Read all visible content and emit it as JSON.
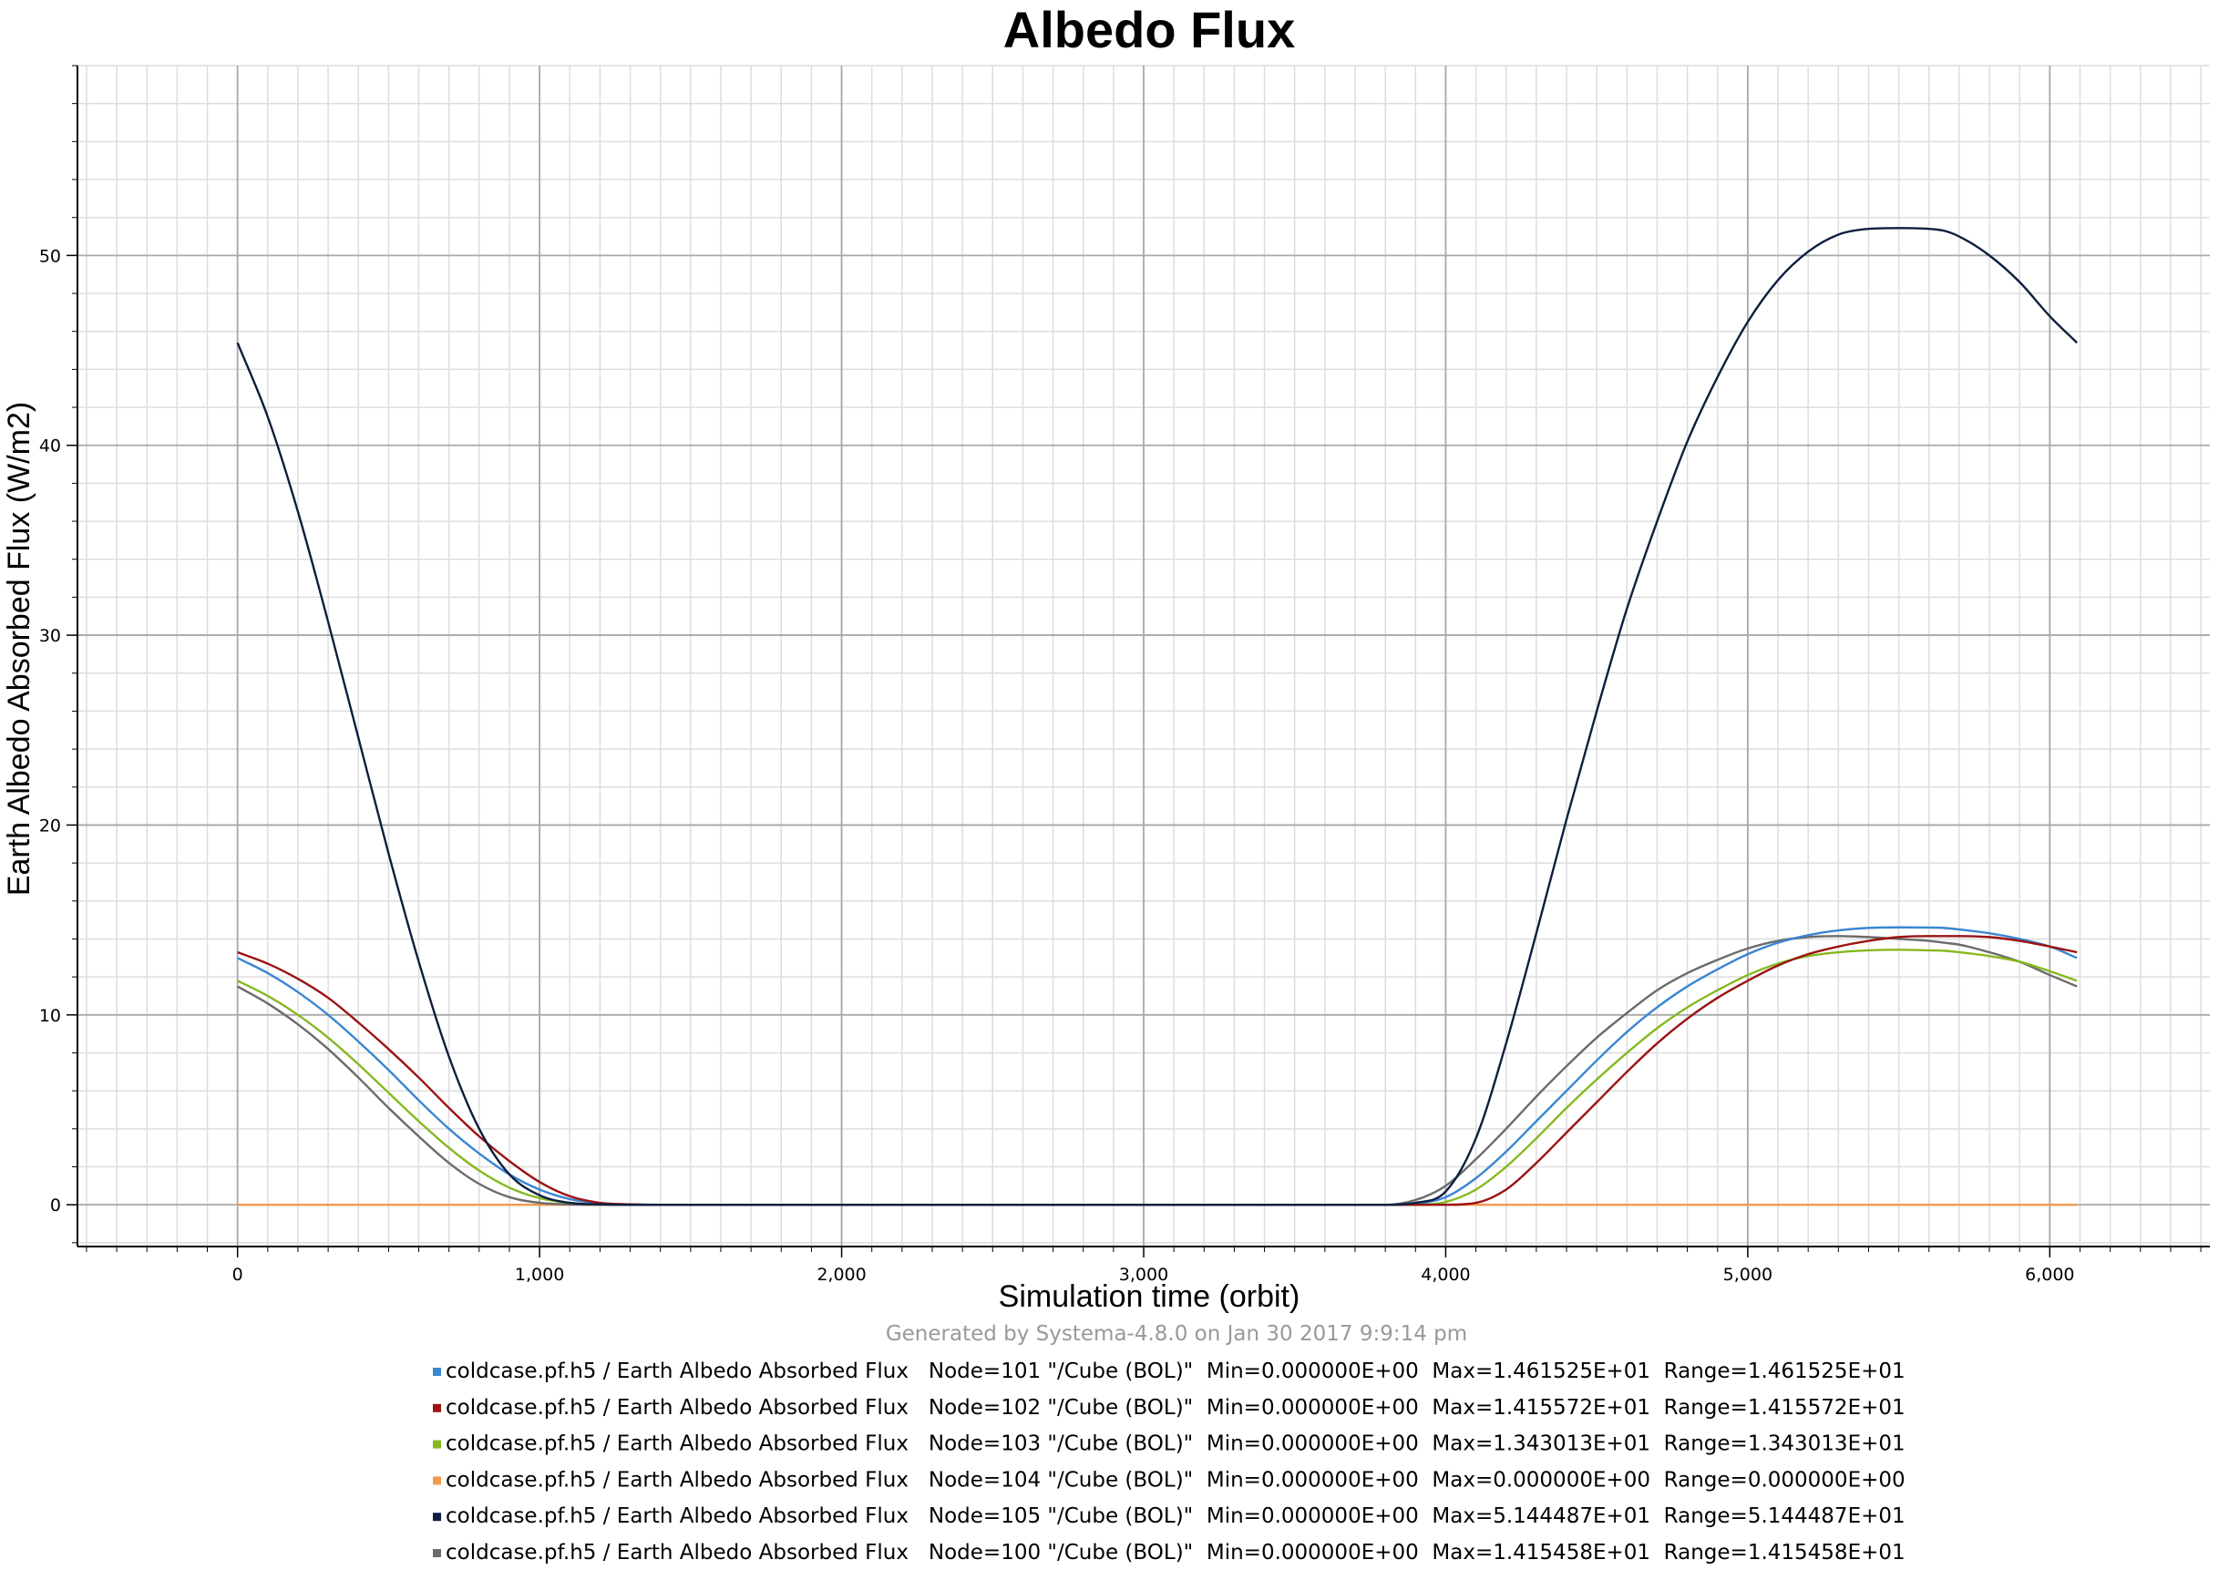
{
  "chart_data": {
    "type": "line",
    "title": "Albedo Flux",
    "xlabel": "Simulation time (orbit)",
    "ylabel": "Earth Albedo Absorbed Flux (W/m2)",
    "xlim": [
      -530,
      6530
    ],
    "ylim": [
      -2.2,
      60
    ],
    "x_ticks": [
      0,
      1000,
      2000,
      3000,
      4000,
      5000,
      6000
    ],
    "x_tick_labels": [
      "0",
      "1,000",
      "2,000",
      "3,000",
      "4,000",
      "5,000",
      "6,000"
    ],
    "y_ticks": [
      0,
      10,
      20,
      30,
      40,
      50
    ],
    "y_tick_labels": [
      "0",
      "10",
      "20",
      "30",
      "40",
      "50"
    ],
    "grid": true,
    "footer": "Generated by Systema-4.8.0 on Jan 30 2017 9:9:14 pm",
    "legend_placement": "bottom",
    "x": [
      0,
      100,
      200,
      300,
      400,
      500,
      600,
      700,
      800,
      900,
      1000,
      1100,
      1200,
      1300,
      1400,
      1500,
      2000,
      2500,
      3000,
      3500,
      3800,
      3900,
      4000,
      4100,
      4200,
      4300,
      4400,
      4500,
      4600,
      4700,
      4800,
      4900,
      5000,
      5100,
      5200,
      5300,
      5400,
      5500,
      5600,
      5650,
      5700,
      5800,
      5900,
      6000,
      6090
    ],
    "series": [
      {
        "label": "coldcase.pf.h5 / Earth Albedo Absorbed Flux   Node=101 \"/Cube (BOL)\"  Min=0.000000E+00  Max=1.461525E+01  Range=1.461525E+01",
        "color": "#3a86d1",
        "values": [
          13.0,
          12.2,
          11.2,
          10.0,
          8.6,
          7.1,
          5.5,
          4.0,
          2.7,
          1.6,
          0.8,
          0.3,
          0.08,
          0.02,
          0,
          0,
          0,
          0,
          0,
          0,
          0,
          0.05,
          0.4,
          1.4,
          2.8,
          4.4,
          6.0,
          7.6,
          9.1,
          10.4,
          11.5,
          12.4,
          13.2,
          13.8,
          14.2,
          14.45,
          14.58,
          14.61,
          14.6,
          14.58,
          14.5,
          14.3,
          14.0,
          13.6,
          13.0
        ]
      },
      {
        "label": "coldcase.pf.h5 / Earth Albedo Absorbed Flux   Node=102 \"/Cube (BOL)\"  Min=0.000000E+00  Max=1.415572E+01  Range=1.415572E+01",
        "color": "#9b1313",
        "values": [
          13.3,
          12.7,
          11.9,
          10.9,
          9.6,
          8.2,
          6.7,
          5.1,
          3.6,
          2.3,
          1.2,
          0.45,
          0.1,
          0.02,
          0,
          0,
          0,
          0,
          0,
          0,
          0,
          0,
          0,
          0.1,
          0.8,
          2.2,
          3.8,
          5.4,
          7.0,
          8.5,
          9.8,
          10.9,
          11.8,
          12.6,
          13.2,
          13.6,
          13.9,
          14.1,
          14.15,
          14.15,
          14.15,
          14.1,
          13.9,
          13.6,
          13.3
        ]
      },
      {
        "label": "coldcase.pf.h5 / Earth Albedo Absorbed Flux   Node=103 \"/Cube (BOL)\"  Min=0.000000E+00  Max=1.343013E+01  Range=1.343013E+01",
        "color": "#86b81f",
        "values": [
          11.8,
          11.0,
          10.0,
          8.8,
          7.4,
          5.9,
          4.4,
          3.0,
          1.8,
          0.9,
          0.35,
          0.1,
          0.02,
          0,
          0,
          0,
          0,
          0,
          0,
          0,
          0,
          0,
          0.15,
          0.8,
          2.0,
          3.5,
          5.1,
          6.6,
          8.0,
          9.3,
          10.4,
          11.3,
          12.1,
          12.7,
          13.1,
          13.3,
          13.4,
          13.43,
          13.4,
          13.38,
          13.3,
          13.1,
          12.8,
          12.3,
          11.8
        ]
      },
      {
        "label": "coldcase.pf.h5 / Earth Albedo Absorbed Flux   Node=104 \"/Cube (BOL)\"  Min=0.000000E+00  Max=0.000000E+00  Range=0.000000E+00",
        "color": "#f29a4e",
        "values": [
          0,
          0,
          0,
          0,
          0,
          0,
          0,
          0,
          0,
          0,
          0,
          0,
          0,
          0,
          0,
          0,
          0,
          0,
          0,
          0,
          0,
          0,
          0,
          0,
          0,
          0,
          0,
          0,
          0,
          0,
          0,
          0,
          0,
          0,
          0,
          0,
          0,
          0,
          0,
          0,
          0,
          0,
          0,
          0,
          0
        ]
      },
      {
        "label": "coldcase.pf.h5 / Earth Albedo Absorbed Flux   Node=105 \"/Cube (BOL)\"  Min=0.000000E+00  Max=5.144487E+01  Range=5.144487E+01",
        "color": "#0c1f3f",
        "values": [
          45.4,
          41.5,
          36.5,
          30.7,
          24.6,
          18.5,
          12.8,
          7.8,
          4.0,
          1.6,
          0.5,
          0.1,
          0.02,
          0,
          0,
          0,
          0,
          0,
          0,
          0,
          0,
          0.1,
          0.7,
          3.5,
          8.5,
          14.3,
          20.3,
          26.0,
          31.4,
          36.0,
          40.2,
          43.6,
          46.5,
          48.7,
          50.2,
          51.1,
          51.4,
          51.44,
          51.4,
          51.3,
          51.0,
          50.0,
          48.6,
          46.8,
          45.4
        ]
      },
      {
        "label": "coldcase.pf.h5 / Earth Albedo Absorbed Flux   Node=100 \"/Cube (BOL)\"  Min=0.000000E+00  Max=1.415458E+01  Range=1.415458E+01",
        "color": "#6b6b6b",
        "values": [
          11.5,
          10.6,
          9.5,
          8.2,
          6.7,
          5.1,
          3.6,
          2.2,
          1.1,
          0.4,
          0.1,
          0.02,
          0,
          0,
          0,
          0,
          0,
          0,
          0,
          0,
          0,
          0.25,
          1.0,
          2.4,
          4.0,
          5.7,
          7.3,
          8.8,
          10.1,
          11.3,
          12.2,
          12.9,
          13.5,
          13.9,
          14.1,
          14.15,
          14.1,
          14.0,
          13.9,
          13.8,
          13.7,
          13.3,
          12.8,
          12.1,
          11.5
        ]
      }
    ]
  }
}
